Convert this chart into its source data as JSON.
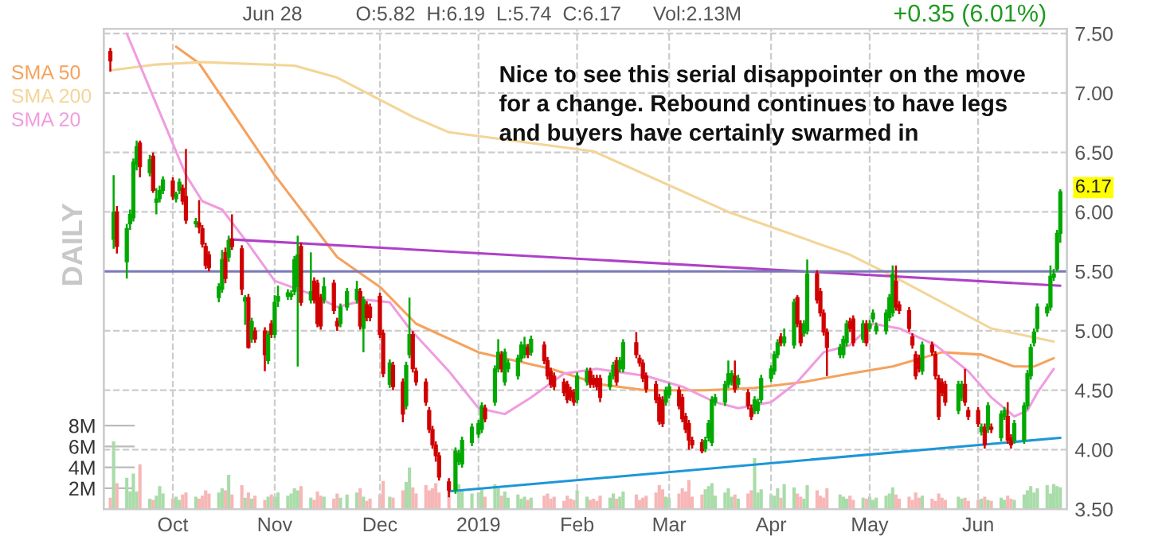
{
  "chart_data": {
    "type": "candlestick",
    "grid": true,
    "legend": "top left",
    "x": [
      "2018-09-12",
      "2018-09-13",
      "2018-09-14",
      "2018-09-17",
      "2018-09-18",
      "2018-09-19",
      "2018-09-20",
      "2018-09-21",
      "2018-09-24",
      "2018-09-25",
      "2018-09-26",
      "2018-09-27",
      "2018-09-28",
      "2018-10-01",
      "2018-10-02",
      "2018-10-03",
      "2018-10-04",
      "2018-10-05",
      "2018-10-08",
      "2018-10-09",
      "2018-10-10",
      "2018-10-11",
      "2018-10-12",
      "2018-10-15",
      "2018-10-16",
      "2018-10-17",
      "2018-10-18",
      "2018-10-19",
      "2018-10-22",
      "2018-10-23",
      "2018-10-24",
      "2018-10-25",
      "2018-10-26",
      "2018-10-29",
      "2018-10-30",
      "2018-10-31",
      "2018-11-01",
      "2018-11-02",
      "2018-11-05",
      "2018-11-06",
      "2018-11-07",
      "2018-11-08",
      "2018-11-09",
      "2018-11-12",
      "2018-11-13",
      "2018-11-14",
      "2018-11-15",
      "2018-11-16",
      "2018-11-19",
      "2018-11-20",
      "2018-11-21",
      "2018-11-23",
      "2018-11-26",
      "2018-11-27",
      "2018-11-28",
      "2018-11-29",
      "2018-11-30",
      "2018-12-03",
      "2018-12-04",
      "2018-12-06",
      "2018-12-07",
      "2018-12-10",
      "2018-12-11",
      "2018-12-12",
      "2018-12-13",
      "2018-12-14",
      "2018-12-17",
      "2018-12-18",
      "2018-12-19",
      "2018-12-20",
      "2018-12-21",
      "2018-12-24",
      "2018-12-26",
      "2018-12-27",
      "2018-12-28",
      "2018-12-31",
      "2019-01-02",
      "2019-01-03",
      "2019-01-04",
      "2019-01-07",
      "2019-01-08",
      "2019-01-09",
      "2019-01-10",
      "2019-01-11",
      "2019-01-14",
      "2019-01-15",
      "2019-01-16",
      "2019-01-17",
      "2019-01-18",
      "2019-01-22",
      "2019-01-23",
      "2019-01-24",
      "2019-01-25",
      "2019-01-28",
      "2019-01-29",
      "2019-01-30",
      "2019-01-31",
      "2019-02-01",
      "2019-02-04",
      "2019-02-05",
      "2019-02-06",
      "2019-02-07",
      "2019-02-08",
      "2019-02-11",
      "2019-02-12",
      "2019-02-13",
      "2019-02-14",
      "2019-02-15",
      "2019-02-19",
      "2019-02-20",
      "2019-02-21",
      "2019-02-22",
      "2019-02-25",
      "2019-02-26",
      "2019-02-27",
      "2019-02-28",
      "2019-03-01",
      "2019-03-04",
      "2019-03-05",
      "2019-03-06",
      "2019-03-07",
      "2019-03-08",
      "2019-03-11",
      "2019-03-12",
      "2019-03-13",
      "2019-03-14",
      "2019-03-15",
      "2019-03-18",
      "2019-03-19",
      "2019-03-20",
      "2019-03-21",
      "2019-03-22",
      "2019-03-25",
      "2019-03-26",
      "2019-03-27",
      "2019-03-28",
      "2019-03-29",
      "2019-04-01",
      "2019-04-02",
      "2019-04-03",
      "2019-04-04",
      "2019-04-05",
      "2019-04-08",
      "2019-04-09",
      "2019-04-10",
      "2019-04-11",
      "2019-04-12",
      "2019-04-15",
      "2019-04-16",
      "2019-04-17",
      "2019-04-18",
      "2019-04-22",
      "2019-04-23",
      "2019-04-24",
      "2019-04-25",
      "2019-04-26",
      "2019-04-29",
      "2019-04-30",
      "2019-05-01",
      "2019-05-02",
      "2019-05-03",
      "2019-05-06",
      "2019-05-07",
      "2019-05-08",
      "2019-05-09",
      "2019-05-10",
      "2019-05-13",
      "2019-05-14",
      "2019-05-15",
      "2019-05-16",
      "2019-05-17",
      "2019-05-20",
      "2019-05-21",
      "2019-05-22",
      "2019-05-23",
      "2019-05-24",
      "2019-05-28",
      "2019-05-29",
      "2019-05-30",
      "2019-05-31",
      "2019-06-03",
      "2019-06-04",
      "2019-06-05",
      "2019-06-06",
      "2019-06-07",
      "2019-06-10",
      "2019-06-11",
      "2019-06-12",
      "2019-06-13",
      "2019-06-14",
      "2019-06-17",
      "2019-06-18",
      "2019-06-19",
      "2019-06-20",
      "2019-06-21",
      "2019-06-24",
      "2019-06-25",
      "2019-06-26",
      "2019-06-27",
      "2019-06-28"
    ],
    "xlim": [
      "2018-09-10",
      "2019-06-30"
    ],
    "xticks": [
      {
        "value": "2018-10-01",
        "label": "Oct"
      },
      {
        "value": "2018-11-01",
        "label": "Nov"
      },
      {
        "value": "2018-12-03",
        "label": "Dec"
      },
      {
        "value": "2019-01-02",
        "label": "2019"
      },
      {
        "value": "2019-02-01",
        "label": "Feb"
      },
      {
        "value": "2019-03-01",
        "label": "Mar"
      },
      {
        "value": "2019-04-01",
        "label": "Apr"
      },
      {
        "value": "2019-05-01",
        "label": "May"
      },
      {
        "value": "2019-06-03",
        "label": "Jun"
      }
    ],
    "ylim": [
      3.5,
      7.54
    ],
    "yticks": [
      {
        "value": 3.5,
        "label": "3.50"
      },
      {
        "value": 4.0,
        "label": "4.00"
      },
      {
        "value": 4.5,
        "label": "4.50"
      },
      {
        "value": 5.0,
        "label": "5.00"
      },
      {
        "value": 5.5,
        "label": "5.50"
      },
      {
        "value": 6.0,
        "label": "6.00"
      },
      {
        "value": 6.5,
        "label": "6.50"
      },
      {
        "value": 7.0,
        "label": "7.00"
      },
      {
        "value": 7.5,
        "label": "7.50"
      }
    ],
    "y2lim": [
      0,
      46
    ],
    "y2ticks": [
      {
        "value": 2,
        "label": "2M"
      },
      {
        "value": 4,
        "label": "4M"
      },
      {
        "value": 6,
        "label": "6M"
      },
      {
        "value": 8,
        "label": "8M"
      }
    ],
    "colors": [
      "#d00000",
      "#00a800",
      "#d00000",
      "#00a800",
      "#00a800",
      "#00a800",
      "#00a800",
      "#d00000",
      "#00a800",
      "#d00000",
      "#00a800",
      "#00a800",
      "#00a800",
      "#d00000",
      "#00a800",
      "#00a800",
      "#d00000",
      "#d00000",
      "#00a800",
      "#d00000",
      "#d00000",
      "#d00000",
      "#d00000",
      "#00a800",
      "#00a800",
      "#d00000",
      "#00a800",
      "#d00000",
      "#d00000",
      "#00a800",
      "#d00000",
      "#00a800",
      "#d00000",
      "#d00000",
      "#00a800",
      "#d00000",
      "#00a800",
      "#00a800",
      "#00a800",
      "#00a800",
      "#00a800",
      "#00a800",
      "#d00000",
      "#00a800",
      "#d00000",
      "#d00000",
      "#d00000",
      "#00a800",
      "#d00000",
      "#d00000",
      "#00a800",
      "#00a800",
      "#00a800",
      "#d00000",
      "#00a800",
      "#d00000",
      "#d00000",
      "#d00000",
      "#d00000",
      "#00a800",
      "#d00000",
      "#d00000",
      "#00a800",
      "#00a800",
      "#d00000",
      "#d00000",
      "#d00000",
      "#d00000",
      "#d00000",
      "#d00000",
      "#d00000",
      "#d00000",
      "#00a800",
      "#00a800",
      "#00a800",
      "#00a800",
      "#00a800",
      "#00a800",
      "#d00000",
      "#00a800",
      "#00a800",
      "#d00000",
      "#00a800",
      "#00a800",
      "#00a800",
      "#00a800",
      "#00a800",
      "#d00000",
      "#00a800",
      "#d00000",
      "#d00000",
      "#d00000",
      "#d00000",
      "#d00000",
      "#d00000",
      "#d00000",
      "#d00000",
      "#00a800",
      "#00a800",
      "#d00000",
      "#d00000",
      "#d00000",
      "#d00000",
      "#00a800",
      "#00a800",
      "#d00000",
      "#00a800",
      "#00a800",
      "#d00000",
      "#d00000",
      "#d00000",
      "#d00000",
      "#d00000",
      "#d00000",
      "#d00000",
      "#00a800",
      "#00a800",
      "#d00000",
      "#d00000",
      "#d00000",
      "#d00000",
      "#d00000",
      "#d00000",
      "#00a800",
      "#00a800",
      "#00a800",
      "#00a800",
      "#00a800",
      "#00a800",
      "#00a800",
      "#d00000",
      "#00a800",
      "#d00000",
      "#d00000",
      "#00a800",
      "#00a800",
      "#00a800",
      "#00a800",
      "#00a800",
      "#00a800",
      "#d00000",
      "#00a800",
      "#00a800",
      "#d00000",
      "#d00000",
      "#00a800",
      "#00a800",
      "#d00000",
      "#d00000",
      "#d00000",
      "#d00000",
      "#00a800",
      "#00a800",
      "#00a800",
      "#d00000",
      "#d00000",
      "#00a800",
      "#d00000",
      "#00a800",
      "#00a800",
      "#00a800",
      "#00a800",
      "#00a800",
      "#00a800",
      "#d00000",
      "#d00000",
      "#d00000",
      "#d00000",
      "#d00000",
      "#d00000",
      "#00a800",
      "#d00000",
      "#d00000",
      "#d00000",
      "#d00000",
      "#d00000",
      "#00a800",
      "#00a800",
      "#d00000",
      "#d00000",
      "#d00000",
      "#00a800",
      "#d00000",
      "#00a800",
      "#d00000",
      "#00a800",
      "#00a800",
      "#d00000",
      "#d00000",
      "#00a800",
      "#00a800",
      "#00a800",
      "#00a800",
      "#00a800",
      "#00a800",
      "#00a800",
      "#00a800",
      "#00a800",
      "#00a800",
      "#00a800"
    ],
    "ohlc": [
      [
        7.35,
        7.38,
        7.18,
        7.27
      ],
      [
        5.77,
        6.31,
        5.69,
        6.0
      ],
      [
        6.0,
        6.05,
        5.65,
        5.71
      ],
      [
        5.58,
        5.9,
        5.44,
        5.86
      ],
      [
        5.9,
        6.02,
        5.85,
        5.98
      ],
      [
        5.95,
        6.45,
        5.92,
        6.42
      ],
      [
        6.4,
        6.6,
        6.35,
        6.55
      ],
      [
        6.58,
        6.6,
        6.29,
        6.38
      ],
      [
        6.33,
        6.48,
        6.3,
        6.44
      ],
      [
        6.47,
        6.5,
        6.16,
        6.18
      ],
      [
        6.08,
        6.2,
        5.98,
        6.11
      ],
      [
        6.11,
        6.22,
        6.08,
        6.18
      ],
      [
        6.18,
        6.3,
        6.15,
        6.27
      ],
      [
        6.26,
        6.29,
        6.1,
        6.13
      ],
      [
        6.11,
        6.17,
        6.08,
        6.15
      ],
      [
        6.18,
        6.28,
        6.15,
        6.25
      ],
      [
        6.2,
        6.23,
        6.06,
        6.09
      ],
      [
        6.13,
        6.53,
        5.9,
        5.93
      ],
      [
        5.9,
        5.95,
        5.87,
        5.92
      ],
      [
        5.91,
        6.1,
        5.82,
        5.87
      ],
      [
        5.86,
        5.89,
        5.7,
        5.73
      ],
      [
        5.71,
        5.74,
        5.52,
        5.55
      ],
      [
        5.64,
        5.67,
        5.5,
        5.53
      ],
      [
        5.28,
        5.4,
        5.24,
        5.37
      ],
      [
        5.35,
        5.68,
        5.32,
        5.6
      ],
      [
        5.66,
        5.7,
        5.4,
        5.44
      ],
      [
        5.62,
        5.8,
        5.58,
        5.76
      ],
      [
        5.77,
        5.98,
        5.68,
        5.71
      ],
      [
        5.69,
        5.72,
        5.3,
        5.35
      ],
      [
        5.25,
        5.3,
        5.05,
        5.28
      ],
      [
        5.28,
        5.31,
        4.85,
        4.86
      ],
      [
        4.93,
        5.11,
        4.9,
        5.08
      ],
      [
        5.0,
        5.03,
        4.9,
        4.93
      ],
      [
        5.0,
        5.03,
        4.66,
        4.8
      ],
      [
        4.75,
        5.0,
        4.72,
        4.97
      ],
      [
        5.06,
        5.09,
        4.94,
        4.97
      ],
      [
        4.97,
        5.3,
        4.94,
        5.24
      ],
      [
        5.25,
        5.38,
        5.2,
        5.29
      ],
      [
        5.29,
        5.35,
        5.26,
        5.32
      ],
      [
        5.29,
        5.34,
        5.26,
        5.31
      ],
      [
        5.33,
        5.63,
        5.3,
        5.6
      ],
      [
        5.37,
        5.8,
        4.7,
        5.64
      ],
      [
        5.71,
        5.74,
        5.21,
        5.24
      ],
      [
        5.26,
        5.66,
        5.23,
        5.33
      ],
      [
        5.42,
        5.45,
        5.23,
        5.26
      ],
      [
        5.4,
        5.43,
        5.03,
        5.06
      ],
      [
        5.28,
        5.31,
        5.01,
        5.04
      ],
      [
        5.26,
        5.45,
        5.23,
        5.37
      ],
      [
        5.4,
        5.43,
        5.14,
        5.17
      ],
      [
        5.08,
        5.11,
        5.0,
        5.04
      ],
      [
        5.06,
        5.23,
        5.03,
        5.2
      ],
      [
        5.2,
        5.36,
        5.17,
        5.33
      ],
      [
        5.26,
        5.42,
        5.23,
        5.35
      ],
      [
        5.33,
        5.36,
        5.01,
        5.04
      ],
      [
        5.02,
        5.29,
        4.82,
        5.26
      ],
      [
        5.22,
        5.25,
        5.08,
        5.11
      ],
      [
        5.2,
        5.23,
        5.08,
        5.11
      ],
      [
        5.29,
        5.32,
        4.94,
        4.97
      ],
      [
        4.98,
        5.01,
        4.61,
        4.64
      ],
      [
        4.55,
        4.76,
        4.52,
        4.73
      ],
      [
        4.71,
        4.74,
        4.5,
        4.53
      ],
      [
        4.57,
        4.6,
        4.23,
        4.3
      ],
      [
        4.37,
        4.74,
        4.34,
        4.71
      ],
      [
        4.8,
        5.28,
        4.77,
        4.97
      ],
      [
        4.97,
        5.0,
        4.65,
        4.68
      ],
      [
        4.66,
        4.69,
        4.54,
        4.57
      ],
      [
        4.57,
        4.6,
        4.37,
        4.4
      ],
      [
        4.33,
        4.36,
        4.14,
        4.17
      ],
      [
        4.17,
        4.2,
        4.01,
        4.04
      ],
      [
        4.04,
        4.07,
        3.9,
        3.95
      ],
      [
        3.95,
        3.98,
        3.74,
        3.77
      ],
      [
        3.73,
        3.76,
        3.6,
        3.66
      ],
      [
        3.66,
        4.02,
        3.63,
        3.99
      ],
      [
        3.9,
        4.0,
        3.87,
        3.97
      ],
      [
        3.88,
        4.11,
        3.85,
        4.08
      ],
      [
        4.06,
        4.22,
        4.03,
        4.19
      ],
      [
        4.13,
        4.25,
        4.1,
        4.22
      ],
      [
        4.17,
        4.4,
        4.14,
        4.37
      ],
      [
        4.35,
        4.38,
        4.23,
        4.26
      ],
      [
        4.4,
        4.71,
        4.37,
        4.68
      ],
      [
        4.68,
        4.93,
        4.65,
        4.82
      ],
      [
        4.8,
        4.83,
        4.65,
        4.68
      ],
      [
        4.57,
        4.85,
        4.54,
        4.82
      ],
      [
        4.68,
        4.76,
        4.65,
        4.73
      ],
      [
        4.62,
        4.8,
        4.59,
        4.77
      ],
      [
        4.77,
        4.91,
        4.74,
        4.88
      ],
      [
        4.8,
        4.95,
        4.77,
        4.88
      ],
      [
        4.86,
        4.89,
        4.77,
        4.8
      ],
      [
        4.82,
        4.96,
        4.79,
        4.93
      ],
      [
        4.88,
        4.91,
        4.72,
        4.75
      ],
      [
        4.75,
        4.78,
        4.59,
        4.62
      ],
      [
        4.66,
        4.69,
        4.52,
        4.55
      ],
      [
        4.62,
        4.65,
        4.5,
        4.53
      ],
      [
        4.57,
        4.6,
        4.45,
        4.48
      ],
      [
        4.55,
        4.58,
        4.39,
        4.42
      ],
      [
        4.5,
        4.53,
        4.41,
        4.44
      ],
      [
        4.48,
        4.51,
        4.37,
        4.4
      ],
      [
        4.42,
        4.65,
        4.39,
        4.62
      ],
      [
        4.57,
        4.69,
        4.54,
        4.66
      ],
      [
        4.66,
        4.69,
        4.52,
        4.55
      ],
      [
        4.6,
        4.63,
        4.52,
        4.55
      ],
      [
        4.6,
        4.63,
        4.5,
        4.53
      ],
      [
        4.6,
        4.63,
        4.4,
        4.44
      ],
      [
        4.53,
        4.65,
        4.5,
        4.62
      ],
      [
        4.62,
        4.74,
        4.59,
        4.71
      ],
      [
        4.75,
        4.78,
        4.54,
        4.57
      ],
      [
        4.68,
        4.78,
        4.65,
        4.75
      ],
      [
        4.68,
        4.93,
        4.65,
        4.9
      ],
      [
        4.9,
        4.99,
        4.77,
        4.8
      ],
      [
        4.77,
        4.8,
        4.7,
        4.73
      ],
      [
        4.73,
        4.76,
        4.57,
        4.6
      ],
      [
        4.62,
        4.65,
        4.48,
        4.51
      ],
      [
        4.55,
        4.58,
        4.39,
        4.42
      ],
      [
        4.44,
        4.47,
        4.21,
        4.24
      ],
      [
        4.42,
        4.45,
        4.19,
        4.22
      ],
      [
        4.4,
        4.53,
        4.37,
        4.5
      ],
      [
        4.46,
        4.56,
        4.43,
        4.53
      ],
      [
        4.5,
        4.53,
        4.34,
        4.37
      ],
      [
        4.44,
        4.47,
        4.23,
        4.26
      ],
      [
        4.28,
        4.31,
        4.14,
        4.17
      ],
      [
        4.22,
        4.25,
        4.0,
        4.08
      ],
      [
        4.08,
        4.11,
        4.01,
        4.04
      ],
      [
        4.06,
        4.09,
        3.97,
        3.99
      ],
      [
        4.01,
        4.11,
        3.98,
        4.08
      ],
      [
        4.1,
        4.25,
        4.07,
        4.22
      ],
      [
        4.06,
        4.45,
        4.03,
        4.42
      ],
      [
        4.4,
        4.47,
        4.37,
        4.44
      ],
      [
        4.4,
        4.58,
        4.37,
        4.55
      ],
      [
        4.55,
        4.75,
        4.52,
        4.64
      ],
      [
        4.57,
        4.67,
        4.54,
        4.64
      ],
      [
        4.62,
        4.75,
        4.48,
        4.51
      ],
      [
        4.55,
        4.63,
        4.52,
        4.6
      ],
      [
        4.48,
        4.51,
        4.34,
        4.37
      ],
      [
        4.35,
        4.38,
        4.25,
        4.28
      ],
      [
        4.33,
        4.45,
        4.3,
        4.42
      ],
      [
        4.33,
        4.43,
        4.3,
        4.4
      ],
      [
        4.42,
        4.63,
        4.39,
        4.6
      ],
      [
        4.6,
        4.71,
        4.57,
        4.68
      ],
      [
        4.66,
        4.83,
        4.63,
        4.8
      ],
      [
        4.8,
        4.93,
        4.77,
        4.9
      ],
      [
        4.95,
        4.98,
        4.87,
        4.9
      ],
      [
        4.9,
        5.02,
        4.87,
        4.95
      ],
      [
        4.88,
        5.27,
        4.85,
        5.24
      ],
      [
        5.28,
        5.3,
        5.03,
        5.06
      ],
      [
        5.06,
        5.09,
        4.87,
        4.9
      ],
      [
        4.98,
        5.09,
        4.95,
        5.06
      ],
      [
        5.0,
        5.6,
        4.97,
        5.48
      ],
      [
        5.48,
        5.51,
        5.23,
        5.26
      ],
      [
        5.33,
        5.36,
        5.12,
        5.15
      ],
      [
        5.15,
        5.18,
        4.96,
        4.99
      ],
      [
        4.99,
        5.02,
        4.62,
        4.86
      ],
      [
        4.8,
        4.89,
        4.77,
        4.86
      ],
      [
        4.8,
        4.96,
        4.77,
        4.93
      ],
      [
        4.9,
        5.09,
        4.87,
        5.06
      ],
      [
        5.08,
        5.11,
        4.99,
        5.02
      ],
      [
        5.1,
        5.13,
        4.87,
        4.9
      ],
      [
        4.93,
        5.09,
        4.9,
        5.06
      ],
      [
        5.06,
        5.09,
        4.87,
        4.9
      ],
      [
        5.02,
        5.09,
        4.99,
        5.06
      ],
      [
        5.1,
        5.18,
        5.07,
        5.15
      ],
      [
        5.0,
        5.07,
        4.97,
        5.04
      ],
      [
        5.0,
        5.18,
        4.97,
        5.15
      ],
      [
        5.11,
        5.31,
        5.08,
        5.28
      ],
      [
        5.15,
        5.55,
        5.12,
        5.48
      ],
      [
        5.42,
        5.55,
        5.17,
        5.2
      ],
      [
        5.22,
        5.25,
        5.14,
        5.17
      ],
      [
        5.17,
        5.2,
        4.99,
        5.02
      ],
      [
        4.95,
        4.98,
        4.85,
        4.88
      ],
      [
        4.8,
        4.83,
        4.59,
        4.62
      ],
      [
        4.77,
        4.8,
        4.65,
        4.68
      ],
      [
        4.66,
        4.91,
        4.63,
        4.88
      ],
      [
        4.88,
        4.91,
        4.79,
        4.82
      ],
      [
        4.8,
        4.83,
        4.59,
        4.62
      ],
      [
        4.6,
        4.63,
        4.25,
        4.28
      ],
      [
        4.57,
        4.6,
        4.45,
        4.48
      ],
      [
        4.55,
        4.58,
        4.37,
        4.4
      ],
      [
        4.33,
        4.58,
        4.3,
        4.55
      ],
      [
        4.44,
        4.58,
        4.41,
        4.55
      ],
      [
        4.55,
        4.68,
        4.37,
        4.4
      ],
      [
        4.33,
        4.36,
        4.25,
        4.28
      ],
      [
        4.33,
        4.36,
        4.19,
        4.22
      ],
      [
        4.15,
        4.22,
        4.12,
        4.19
      ],
      [
        4.19,
        4.22,
        4.01,
        4.04
      ],
      [
        4.17,
        4.4,
        4.14,
        4.37
      ],
      [
        4.19,
        4.22,
        4.14,
        4.17
      ],
      [
        4.1,
        4.33,
        4.07,
        4.3
      ],
      [
        4.28,
        4.36,
        4.25,
        4.33
      ],
      [
        4.28,
        4.4,
        4.05,
        4.08
      ],
      [
        4.1,
        4.13,
        4.01,
        4.04
      ],
      [
        4.08,
        4.25,
        4.05,
        4.22
      ],
      [
        4.08,
        4.4,
        4.05,
        4.37
      ],
      [
        4.37,
        4.67,
        4.34,
        4.64
      ],
      [
        4.62,
        4.89,
        4.59,
        4.86
      ],
      [
        4.9,
        5.02,
        4.87,
        4.99
      ],
      [
        5.02,
        5.23,
        4.99,
        5.2
      ],
      [
        5.15,
        5.23,
        5.12,
        5.2
      ],
      [
        5.2,
        5.55,
        5.17,
        5.46
      ],
      [
        5.45,
        5.52,
        5.42,
        5.48
      ],
      [
        5.52,
        5.85,
        5.5,
        5.82
      ],
      [
        5.82,
        6.19,
        5.74,
        6.17
      ]
    ],
    "series": [
      {
        "type": "bar",
        "axis": "y2",
        "colors": [
          "#f7b7b7",
          "#a9dca9",
          "#f7b7b7",
          "#a9dca9",
          "#a9dca9",
          "#a9dca9",
          "#a9dca9",
          "#f7b7b7",
          "#a9dca9",
          "#f7b7b7",
          "#a9dca9",
          "#a9dca9",
          "#a9dca9",
          "#f7b7b7",
          "#a9dca9",
          "#a9dca9",
          "#f7b7b7",
          "#f7b7b7",
          "#a9dca9",
          "#f7b7b7",
          "#f7b7b7",
          "#f7b7b7",
          "#f7b7b7",
          "#a9dca9",
          "#a9dca9",
          "#f7b7b7",
          "#a9dca9",
          "#f7b7b7",
          "#f7b7b7",
          "#a9dca9",
          "#f7b7b7",
          "#a9dca9",
          "#f7b7b7",
          "#f7b7b7",
          "#a9dca9",
          "#f7b7b7",
          "#a9dca9",
          "#a9dca9",
          "#a9dca9",
          "#a9dca9",
          "#a9dca9",
          "#a9dca9",
          "#f7b7b7",
          "#a9dca9",
          "#f7b7b7",
          "#f7b7b7",
          "#f7b7b7",
          "#a9dca9",
          "#f7b7b7",
          "#f7b7b7",
          "#a9dca9",
          "#a9dca9",
          "#a9dca9",
          "#f7b7b7",
          "#a9dca9",
          "#f7b7b7",
          "#f7b7b7",
          "#f7b7b7",
          "#f7b7b7",
          "#a9dca9",
          "#f7b7b7",
          "#f7b7b7",
          "#a9dca9",
          "#a9dca9",
          "#f7b7b7",
          "#f7b7b7",
          "#f7b7b7",
          "#f7b7b7",
          "#f7b7b7",
          "#f7b7b7",
          "#f7b7b7",
          "#f7b7b7",
          "#a9dca9",
          "#a9dca9",
          "#a9dca9",
          "#a9dca9",
          "#a9dca9",
          "#a9dca9",
          "#f7b7b7",
          "#a9dca9",
          "#a9dca9",
          "#f7b7b7",
          "#a9dca9",
          "#a9dca9",
          "#a9dca9",
          "#a9dca9",
          "#a9dca9",
          "#f7b7b7",
          "#a9dca9",
          "#f7b7b7",
          "#f7b7b7",
          "#f7b7b7",
          "#f7b7b7",
          "#f7b7b7",
          "#f7b7b7",
          "#f7b7b7",
          "#f7b7b7",
          "#a9dca9",
          "#a9dca9",
          "#f7b7b7",
          "#f7b7b7",
          "#f7b7b7",
          "#f7b7b7",
          "#a9dca9",
          "#a9dca9",
          "#f7b7b7",
          "#a9dca9",
          "#a9dca9",
          "#f7b7b7",
          "#f7b7b7",
          "#f7b7b7",
          "#f7b7b7",
          "#f7b7b7",
          "#f7b7b7",
          "#f7b7b7",
          "#a9dca9",
          "#a9dca9",
          "#f7b7b7",
          "#f7b7b7",
          "#f7b7b7",
          "#f7b7b7",
          "#f7b7b7",
          "#f7b7b7",
          "#a9dca9",
          "#a9dca9",
          "#a9dca9",
          "#a9dca9",
          "#a9dca9",
          "#a9dca9",
          "#a9dca9",
          "#f7b7b7",
          "#a9dca9",
          "#f7b7b7",
          "#f7b7b7",
          "#a9dca9",
          "#a9dca9",
          "#a9dca9",
          "#a9dca9",
          "#a9dca9",
          "#a9dca9",
          "#f7b7b7",
          "#a9dca9",
          "#a9dca9",
          "#f7b7b7",
          "#f7b7b7",
          "#a9dca9",
          "#a9dca9",
          "#f7b7b7",
          "#f7b7b7",
          "#f7b7b7",
          "#f7b7b7",
          "#a9dca9",
          "#a9dca9",
          "#a9dca9",
          "#f7b7b7",
          "#f7b7b7",
          "#a9dca9",
          "#f7b7b7",
          "#a9dca9",
          "#a9dca9",
          "#a9dca9",
          "#a9dca9",
          "#a9dca9",
          "#a9dca9",
          "#f7b7b7",
          "#f7b7b7",
          "#f7b7b7",
          "#f7b7b7",
          "#f7b7b7",
          "#f7b7b7",
          "#a9dca9",
          "#f7b7b7",
          "#f7b7b7",
          "#f7b7b7",
          "#f7b7b7",
          "#f7b7b7",
          "#a9dca9",
          "#a9dca9",
          "#f7b7b7",
          "#f7b7b7",
          "#f7b7b7",
          "#a9dca9",
          "#f7b7b7",
          "#a9dca9",
          "#f7b7b7",
          "#a9dca9",
          "#a9dca9",
          "#f7b7b7",
          "#f7b7b7",
          "#a9dca9",
          "#a9dca9",
          "#a9dca9",
          "#a9dca9",
          "#a9dca9",
          "#a9dca9",
          "#a9dca9",
          "#a9dca9",
          "#a9dca9",
          "#a9dca9",
          "#a9dca9"
        ],
        "values": [
          1.1,
          6.5,
          2.5,
          3.0,
          1.7,
          3.4,
          1.7,
          4.3,
          1.0,
          0.9,
          1.3,
          2.2,
          1.5,
          1.0,
          1.2,
          0.9,
          1.4,
          1.6,
          1.2,
          1.0,
          1.3,
          1.8,
          1.5,
          1.6,
          2.0,
          1.8,
          3.3,
          1.4,
          2.3,
          1.1,
          1.6,
          1.0,
          1.3,
          0.9,
          1.2,
          1.4,
          1.2,
          1.6,
          1.3,
          1.5,
          2.0,
          1.8,
          2.2,
          1.1,
          0.9,
          1.7,
          1.3,
          1.2,
          1.0,
          1.5,
          1.1,
          1.4,
          1.6,
          2.0,
          1.2,
          0.8,
          1.0,
          1.4,
          2.7,
          1.2,
          1.1,
          1.8,
          2.6,
          4.0,
          2.1,
          1.5,
          2.3,
          1.8,
          2.0,
          2.5,
          1.6,
          2.2,
          null,
          2.4,
          1.8,
          1.5,
          1.6,
          1.9,
          1.2,
          2.4,
          2.0,
          1.3,
          1.7,
          1.1,
          1.4,
          1.0,
          1.2,
          0.9,
          1.1,
          1.3,
          1.5,
          1.0,
          1.2,
          0.8,
          1.3,
          1.0,
          0.9,
          1.8,
          1.2,
          0.9,
          1.0,
          0.8,
          1.3,
          1.1,
          1.5,
          1.0,
          1.2,
          1.7,
          1.4,
          0.9,
          1.1,
          1.3,
          1.6,
          2.3,
          1.9,
          1.2,
          1.1,
          1.5,
          2.0,
          1.7,
          2.8,
          1.2,
          1.4,
          1.9,
          2.2,
          2.5,
          1.3,
          1.6,
          2.0,
          1.2,
          1.4,
          1.0,
          1.5,
          1.8,
          4.9,
          1.6,
          1.9,
          1.4,
          1.3,
          2.0,
          1.1,
          2.4,
          2.1,
          1.5,
          1.2,
          1.0,
          2.3,
          1.8,
          1.3,
          1.1,
          2.0,
          1.4,
          1.2,
          1.0,
          1.3,
          0.9,
          1.1,
          1.0,
          1.2,
          0.9,
          1.1,
          1.3,
          1.5,
          2.1,
          1.4,
          1.0,
          1.2,
          0.9,
          1.6,
          1.1,
          1.3,
          1.0,
          0.8,
          1.5,
          1.1,
          0.9,
          1.2,
          1.0,
          1.1,
          0.8,
          0.9,
          1.0,
          1.2,
          0.9,
          0.8,
          1.1,
          0.9,
          1.3,
          1.0,
          0.9,
          1.4,
          1.8,
          2.2,
          1.6,
          2.0,
          2.3,
          1.5,
          2.4,
          2.2,
          2.1
        ]
      },
      {
        "type": "line",
        "name": "SMA 50",
        "color": "#f5a25d",
        "x": [
          "2018-10-02",
          "2018-10-09",
          "2018-11-01",
          "2018-11-20",
          "2018-12-03",
          "2018-12-14",
          "2019-01-02",
          "2019-01-24",
          "2019-02-08",
          "2019-02-22",
          "2019-03-12",
          "2019-03-27",
          "2019-04-11",
          "2019-04-25",
          "2019-05-08",
          "2019-05-23",
          "2019-06-04",
          "2019-06-14",
          "2019-06-20",
          "2019-06-26"
        ],
        "values": [
          7.39,
          7.25,
          6.31,
          5.62,
          5.37,
          5.06,
          4.82,
          4.68,
          4.55,
          4.5,
          4.5,
          4.52,
          4.57,
          4.64,
          4.7,
          4.82,
          4.8,
          4.7,
          4.7,
          4.77
        ]
      },
      {
        "type": "line",
        "name": "SMA 200",
        "color": "#f3d598",
        "x": [
          "2018-09-12",
          "2018-09-26",
          "2018-10-10",
          "2018-11-07",
          "2018-11-20",
          "2018-12-13",
          "2018-12-24",
          "2019-02-06",
          "2019-03-19",
          "2019-04-25",
          "2019-05-08",
          "2019-06-07",
          "2019-06-26"
        ],
        "values": [
          7.19,
          7.24,
          7.26,
          7.23,
          7.13,
          6.8,
          6.67,
          6.51,
          6.0,
          5.64,
          5.46,
          5.02,
          4.91
        ]
      },
      {
        "type": "line",
        "name": "SMA 20",
        "color": "#f09ce0",
        "x": [
          "2018-09-17",
          "2018-10-05",
          "2018-10-10",
          "2018-10-16",
          "2018-10-24",
          "2018-11-01",
          "2018-11-12",
          "2018-11-20",
          "2018-11-29",
          "2018-12-06",
          "2018-12-12",
          "2018-12-24",
          "2019-01-02",
          "2019-01-10",
          "2019-01-18",
          "2019-01-28",
          "2019-02-07",
          "2019-02-22",
          "2019-03-05",
          "2019-03-15",
          "2019-03-22",
          "2019-04-01",
          "2019-04-09",
          "2019-04-17",
          "2019-04-25",
          "2019-05-02",
          "2019-05-10",
          "2019-05-21",
          "2019-05-31",
          "2019-06-07",
          "2019-06-14",
          "2019-06-18",
          "2019-06-21",
          "2019-06-26"
        ],
        "values": [
          7.5,
          6.31,
          6.09,
          6.02,
          5.73,
          5.42,
          5.31,
          5.2,
          5.26,
          5.24,
          5.02,
          4.66,
          4.35,
          4.3,
          4.44,
          4.64,
          4.68,
          4.62,
          4.53,
          4.4,
          4.35,
          4.4,
          4.57,
          4.82,
          4.88,
          5.06,
          5.02,
          4.88,
          4.66,
          4.44,
          4.28,
          4.33,
          4.48,
          4.68
        ]
      },
      {
        "type": "line",
        "color": "#b040c8",
        "x": [
          "2018-10-18",
          "2019-06-28"
        ],
        "values": [
          5.77,
          5.38
        ]
      },
      {
        "type": "line",
        "color": "#1e96d8",
        "x": [
          "2018-12-24",
          "2019-06-28"
        ],
        "values": [
          3.65,
          4.1
        ]
      }
    ],
    "ref_lines": [
      {
        "axis": "y",
        "value": 5.5,
        "color": "#7a7ab8"
      }
    ],
    "annotations": [
      "Jun 28",
      "O:5.82  H:6.19  L:5.74  C:6.17",
      "Vol:2.13M",
      "+0.35 (6.01%)",
      "Nice to see this serial disappointer on the move\nfor a change. Rebound continues to have legs\nand buyers have certainly swarmed in",
      "6.17",
      "DAILY"
    ]
  }
}
